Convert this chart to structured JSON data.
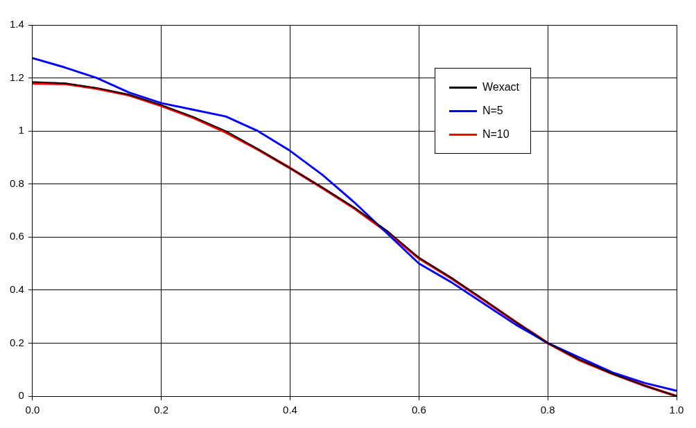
{
  "chart_data": {
    "type": "line",
    "x": [
      0,
      0.05,
      0.1,
      0.15,
      0.2,
      0.25,
      0.3,
      0.35,
      0.4,
      0.45,
      0.5,
      0.55,
      0.6,
      0.65,
      0.7,
      0.75,
      0.8,
      0.85,
      0.9,
      0.95,
      1.0
    ],
    "series": [
      {
        "name": "Wexact",
        "color": "#000000",
        "values": [
          1.185,
          1.18,
          1.162,
          1.137,
          1.098,
          1.053,
          1.0,
          0.932,
          0.86,
          0.787,
          0.71,
          0.625,
          0.522,
          0.447,
          0.365,
          0.28,
          0.2,
          0.137,
          0.085,
          0.04,
          0.0
        ]
      },
      {
        "name": "N=5",
        "color": "#0000ff",
        "values": [
          1.275,
          1.24,
          1.2,
          1.145,
          1.105,
          1.08,
          1.055,
          1.0,
          0.925,
          0.835,
          0.73,
          0.615,
          0.5,
          0.43,
          0.35,
          0.27,
          0.2,
          0.145,
          0.09,
          0.05,
          0.02
        ]
      },
      {
        "name": "N=10",
        "color": "#ff0000",
        "values": [
          1.18,
          1.178,
          1.16,
          1.135,
          1.095,
          1.05,
          0.995,
          0.93,
          0.86,
          0.785,
          0.708,
          0.62,
          0.52,
          0.445,
          0.363,
          0.28,
          0.2,
          0.135,
          0.085,
          0.04,
          0.0
        ]
      }
    ],
    "xlim": [
      0,
      1
    ],
    "xticks": [
      {
        "value": 0,
        "label": "0.0"
      },
      0.2,
      0.4,
      0.6,
      0.8,
      {
        "value": 1,
        "label": "1.0"
      }
    ],
    "ylim": [
      0,
      1.4
    ],
    "yticks": [
      0,
      0.2,
      0.4,
      0.6,
      0.8,
      1,
      1.2,
      1.4
    ],
    "grid": true,
    "legend": "top right",
    "marker": "none",
    "line_style": "solid"
  }
}
